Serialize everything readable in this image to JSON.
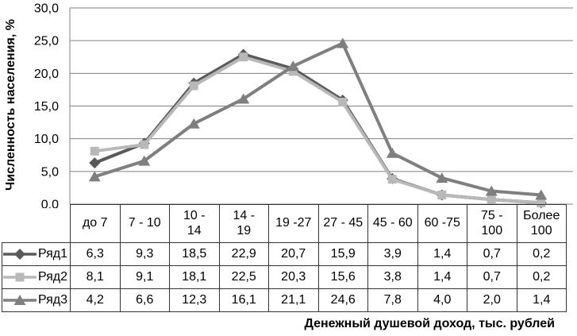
{
  "chart_data": {
    "type": "line",
    "title": "",
    "xlabel": "Денежный душевой доход, тыс. рублей",
    "ylabel": "Численность населения, %",
    "categories": [
      "до 7",
      "7 - 10",
      "10 -\n14",
      "14 -\n19",
      "19 -27",
      "27 - 45",
      "45 - 60",
      "60 -75",
      "75 -\n100",
      "Более\n100"
    ],
    "y_tick_labels": [
      "30,0",
      "25,0",
      "20,0",
      "15,0",
      "10,0",
      "5,0",
      "0,0"
    ],
    "ylim": [
      0,
      30
    ],
    "y_step": 5,
    "grid": true,
    "legend_position": "table-left",
    "decimal_separator": ",",
    "series": [
      {
        "name": "Ряд1",
        "marker": "diamond",
        "color": "#595959",
        "values": [
          6.3,
          9.3,
          18.5,
          22.9,
          20.7,
          15.9,
          3.9,
          1.4,
          0.7,
          0.2
        ],
        "display_values": [
          "6,3",
          "9,3",
          "18,5",
          "22,9",
          "20,7",
          "15,9",
          "3,9",
          "1,4",
          "0,7",
          "0,2"
        ]
      },
      {
        "name": "Ряд2",
        "marker": "square",
        "color": "#b8b8b8",
        "values": [
          8.1,
          9.1,
          18.1,
          22.5,
          20.3,
          15.6,
          3.8,
          1.4,
          0.7,
          0.2
        ],
        "display_values": [
          "8,1",
          "9,1",
          "18,1",
          "22,5",
          "20,3",
          "15,6",
          "3,8",
          "1,4",
          "0,7",
          "0,2"
        ]
      },
      {
        "name": "Ряд3",
        "marker": "triangle",
        "color": "#7f7f7f",
        "values": [
          4.2,
          6.6,
          12.3,
          16.1,
          21.1,
          24.6,
          7.8,
          4.0,
          2.0,
          1.4
        ],
        "display_values": [
          "4,2",
          "6,6",
          "12,3",
          "16,1",
          "21,1",
          "24,6",
          "7,8",
          "4,0",
          "2,0",
          "1,4"
        ]
      }
    ],
    "colors": {
      "gridline": "#808080",
      "axis": "#808080",
      "table_border": "#333333",
      "text": "#000000",
      "background": "#ffffff"
    }
  }
}
